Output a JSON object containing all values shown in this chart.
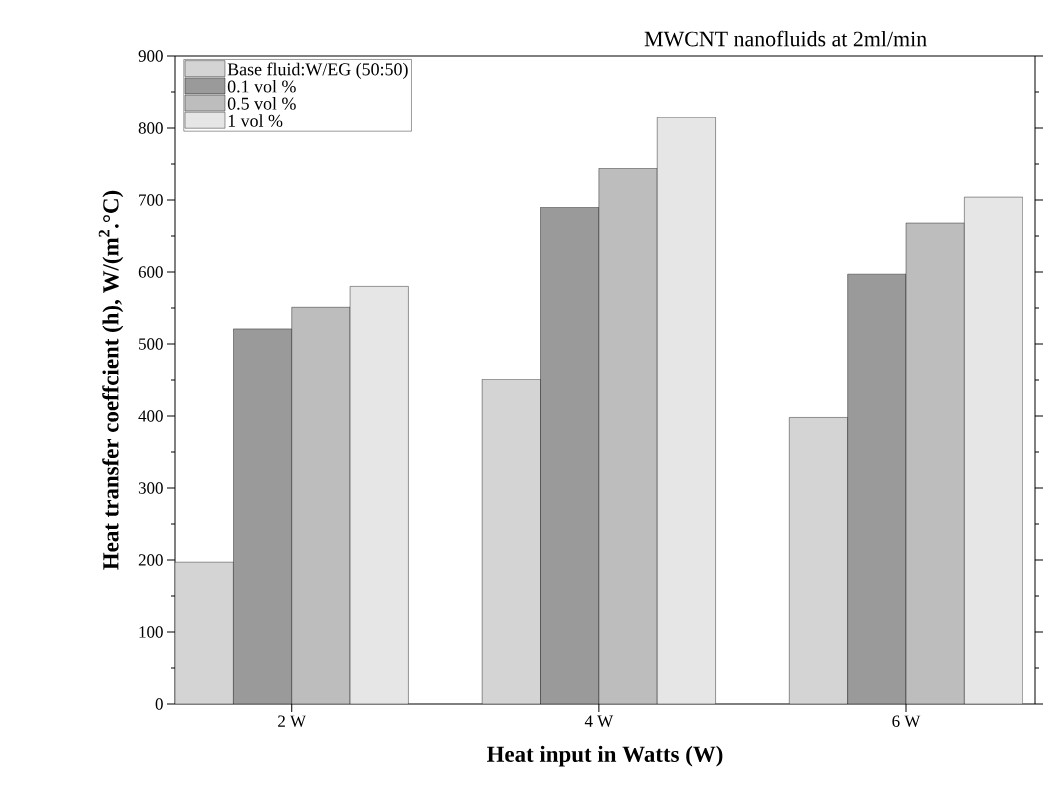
{
  "chart_data": {
    "type": "bar",
    "title": "MWCNT nanofluids at 2ml/min",
    "xlabel": "Heat input in Watts (W)",
    "ylabel": "Heat transfer coeffcient (h), W/(m$^{2}$.°C)",
    "categories": [
      "2 W",
      "4 W",
      "6 W"
    ],
    "series": [
      {
        "name": "Base fluid:W/EG (50:50)",
        "color": "#d4d4d4",
        "values": [
          197,
          451,
          398
        ]
      },
      {
        "name": "0.1 vol %",
        "color": "#9a9a9a",
        "values": [
          521,
          690,
          597
        ]
      },
      {
        "name": "0.5 vol %",
        "color": "#bdbdbd",
        "values": [
          551,
          744,
          668
        ]
      },
      {
        "name": "1 vol %",
        "color": "#e6e6e6",
        "values": [
          580,
          815,
          704
        ]
      }
    ],
    "ylim": [
      0,
      900
    ],
    "yticks": [
      0,
      100,
      200,
      300,
      400,
      500,
      600,
      700,
      800,
      900
    ],
    "grid": false,
    "legend": "top left"
  }
}
